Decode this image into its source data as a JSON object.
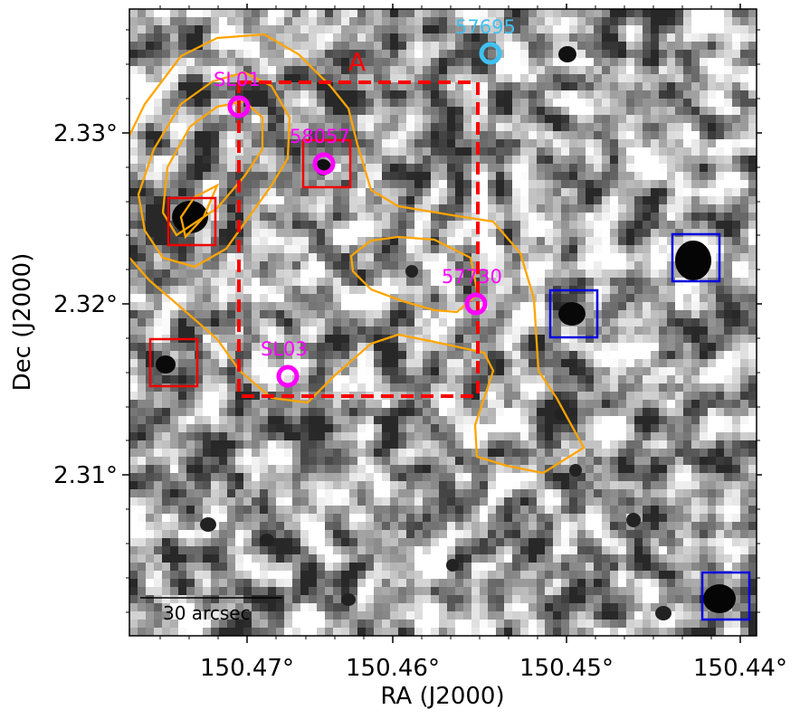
{
  "figure": {
    "xaxis": {
      "title": "RA (J2000)",
      "ticks": [
        "150.47°",
        "150.46°",
        "150.45°",
        "150.44°"
      ]
    },
    "yaxis": {
      "title": "Dec (J2000)",
      "ticks": [
        "2.33°",
        "2.32°",
        "2.31°"
      ]
    },
    "region_label": "A",
    "scalebar_label": "30 arcsec",
    "sources": [
      {
        "id": "SL01",
        "color": "#ff00ff"
      },
      {
        "id": "58057",
        "color": "#ff00ff"
      },
      {
        "id": "57730",
        "color": "#ff00ff"
      },
      {
        "id": "SL03",
        "color": "#ff00ff"
      },
      {
        "id": "57695",
        "color": "#3fc0f0"
      }
    ],
    "colors": {
      "contour": "#ffa500",
      "region_box": "#ff0000",
      "red_boxes": "#ee0000",
      "blue_boxes": "#0000dd",
      "magenta": "#ff00ff",
      "cyan": "#3fc0f0"
    },
    "image_style": "grayscale noise map with dark blobs"
  }
}
